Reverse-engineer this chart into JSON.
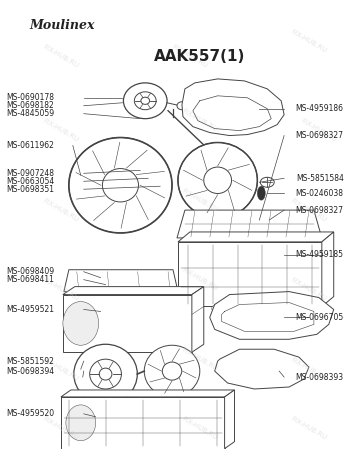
{
  "title": "AAK557(1)",
  "brand": "Moulinex",
  "watermark": "FIX-HUB.RU",
  "bg_color": "#ffffff",
  "line_color": "#444444",
  "text_color": "#222222",
  "watermark_color": "#d0d0d0",
  "label_fontsize": 5.5,
  "title_fontsize": 11,
  "brand_fontsize": 9
}
